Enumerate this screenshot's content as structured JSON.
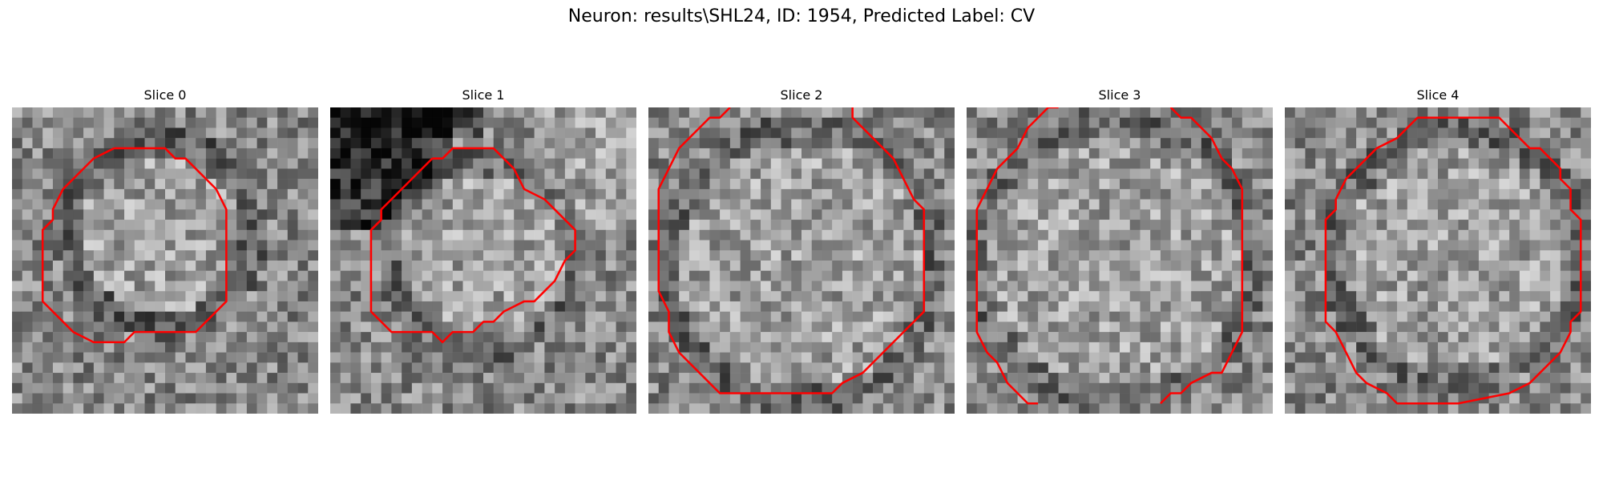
{
  "figure": {
    "title": "Neuron: results\\SHL24, ID: 1954, Predicted Label: CV"
  },
  "panels": [
    {
      "title": "Slice 0"
    },
    {
      "title": "Slice 1"
    },
    {
      "title": "Slice 2"
    },
    {
      "title": "Slice 3"
    },
    {
      "title": "Slice 4"
    }
  ],
  "colors": {
    "contour": "#ff0000",
    "background": "#ffffff"
  }
}
